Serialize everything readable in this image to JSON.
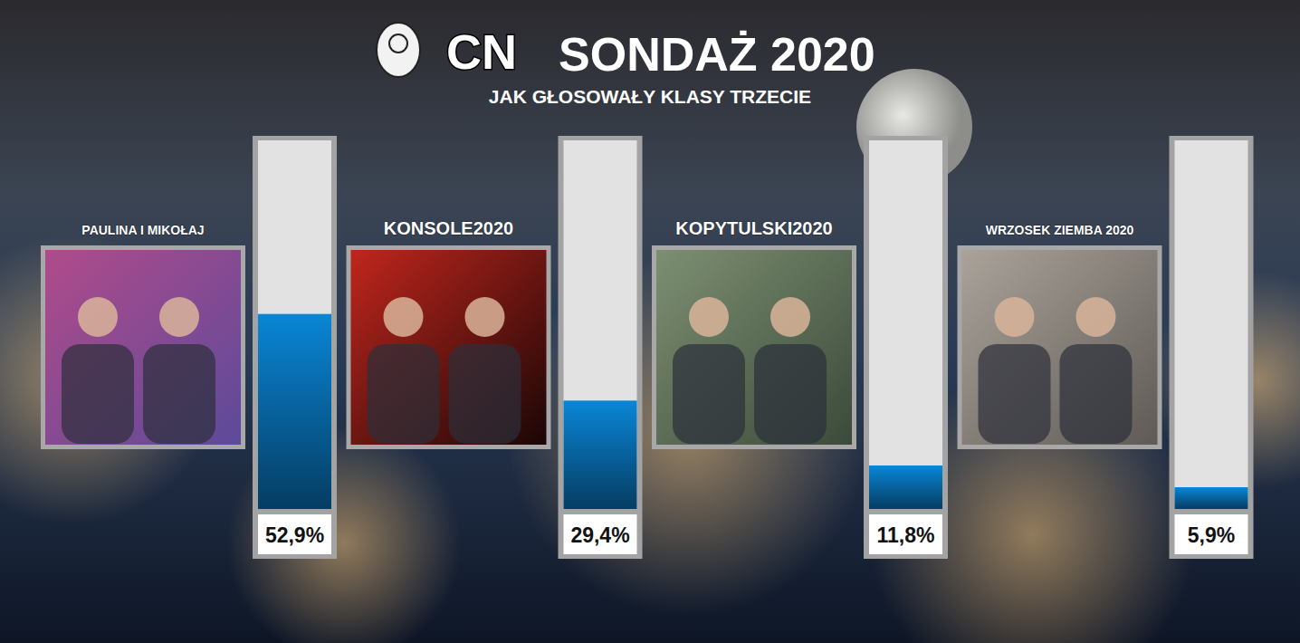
{
  "chart_data": {
    "type": "bar",
    "title": "SONDAŻ 2020",
    "subtitle": "JAK GŁOSOWAŁY KLASY TRZECIE",
    "annotations": [
      "CN"
    ],
    "categories": [
      "PAULINA I MIKOŁAJ",
      "KONSOLE2020",
      "KOPYTULSKI2020",
      "WRZOSEK ZIEMBA 2020"
    ],
    "values": [
      52.9,
      29.4,
      11.8,
      5.9
    ],
    "value_labels": [
      "52,9%",
      "29,4%",
      "11,8%",
      "5,9%"
    ],
    "color": "#0a86d6",
    "ylim": [
      0,
      100
    ],
    "data_labels": true,
    "tick_labels": false,
    "grid": false
  }
}
